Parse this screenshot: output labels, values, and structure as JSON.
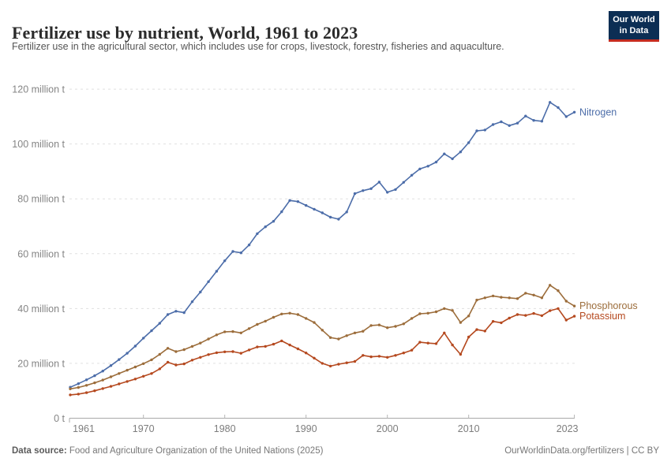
{
  "header": {
    "title": "Fertilizer use by nutrient, World, 1961 to 2023",
    "subtitle": "Fertilizer use in the agricultural sector, which includes use for crops, livestock, forestry, fisheries and aquaculture.",
    "logo": {
      "line1": "Our World",
      "line2": "in Data"
    }
  },
  "footer": {
    "source_label": "Data source:",
    "source_text": " Food and Agriculture Organization of the United Nations (2025)",
    "rights": "OurWorldinData.org/fertilizers | CC BY"
  },
  "chart_data": {
    "type": "line",
    "title": "Fertilizer use by nutrient, World, 1961 to 2023",
    "unit": "million t",
    "xlim": [
      1961,
      2023
    ],
    "ylim": [
      0,
      120
    ],
    "grid": "horizontal-dashed",
    "legend_position": "end-of-line-labels",
    "x_start": 1961,
    "xticks": [
      1961,
      1970,
      1980,
      1990,
      2000,
      2010,
      2023
    ],
    "yticks": [
      {
        "value": 0,
        "label": "0 t"
      },
      {
        "value": 20,
        "label": "20 million t"
      },
      {
        "value": 40,
        "label": "40 million t"
      },
      {
        "value": 60,
        "label": "60 million t"
      },
      {
        "value": 80,
        "label": "80 million t"
      },
      {
        "value": 100,
        "label": "100 million t"
      },
      {
        "value": 120,
        "label": "120 million t"
      }
    ],
    "series": [
      {
        "name": "Nitrogen",
        "color": "#4c6da9",
        "values": [
          11.3,
          12.6,
          14.0,
          15.5,
          17.2,
          19.2,
          21.4,
          23.7,
          26.3,
          29.2,
          31.9,
          34.6,
          37.8,
          39.0,
          38.5,
          42.5,
          46.0,
          49.8,
          53.6,
          57.4,
          60.8,
          60.3,
          63.2,
          67.3,
          69.8,
          71.8,
          75.3,
          79.4,
          79.0,
          77.6,
          76.2,
          74.9,
          73.3,
          72.6,
          75.2,
          81.9,
          83.0,
          83.7,
          86.1,
          82.4,
          83.4,
          86.0,
          88.6,
          90.9,
          91.9,
          93.4,
          96.4,
          94.6,
          97.1,
          100.5,
          104.8,
          105.1,
          107.1,
          108.1,
          106.7,
          107.6,
          110.2,
          108.6,
          108.3,
          115.2,
          113.3,
          110.0,
          111.6
        ]
      },
      {
        "name": "Phosphorous",
        "color": "#9c6d3b",
        "values": [
          10.7,
          11.2,
          12.0,
          12.9,
          13.9,
          15.1,
          16.3,
          17.5,
          18.7,
          19.9,
          21.3,
          23.3,
          25.5,
          24.3,
          25.0,
          26.2,
          27.4,
          28.9,
          30.4,
          31.5,
          31.6,
          31.1,
          32.7,
          34.2,
          35.4,
          36.8,
          38.0,
          38.3,
          37.8,
          36.4,
          34.9,
          32.1,
          29.4,
          28.9,
          30.1,
          31.1,
          31.7,
          33.8,
          34.0,
          33.0,
          33.5,
          34.4,
          36.4,
          38.1,
          38.3,
          38.8,
          40.0,
          39.3,
          34.9,
          37.3,
          43.1,
          43.9,
          44.6,
          44.1,
          43.9,
          43.6,
          45.6,
          44.9,
          43.9,
          48.5,
          46.5,
          42.7,
          40.9
        ]
      },
      {
        "name": "Potassium",
        "color": "#b5491f",
        "values": [
          8.5,
          8.8,
          9.3,
          10.0,
          10.8,
          11.6,
          12.5,
          13.4,
          14.3,
          15.3,
          16.3,
          18.0,
          20.4,
          19.4,
          19.8,
          21.2,
          22.2,
          23.2,
          23.9,
          24.2,
          24.3,
          23.7,
          24.9,
          26.0,
          26.2,
          27.0,
          28.2,
          26.7,
          25.3,
          23.8,
          21.9,
          20.0,
          19.0,
          19.7,
          20.2,
          20.7,
          22.9,
          22.4,
          22.6,
          22.2,
          22.9,
          23.8,
          24.8,
          27.7,
          27.4,
          27.2,
          31.1,
          26.7,
          23.3,
          29.6,
          32.3,
          31.8,
          35.3,
          34.8,
          36.5,
          37.8,
          37.5,
          38.2,
          37.4,
          39.2,
          40.0,
          35.8,
          37.2
        ]
      }
    ]
  }
}
